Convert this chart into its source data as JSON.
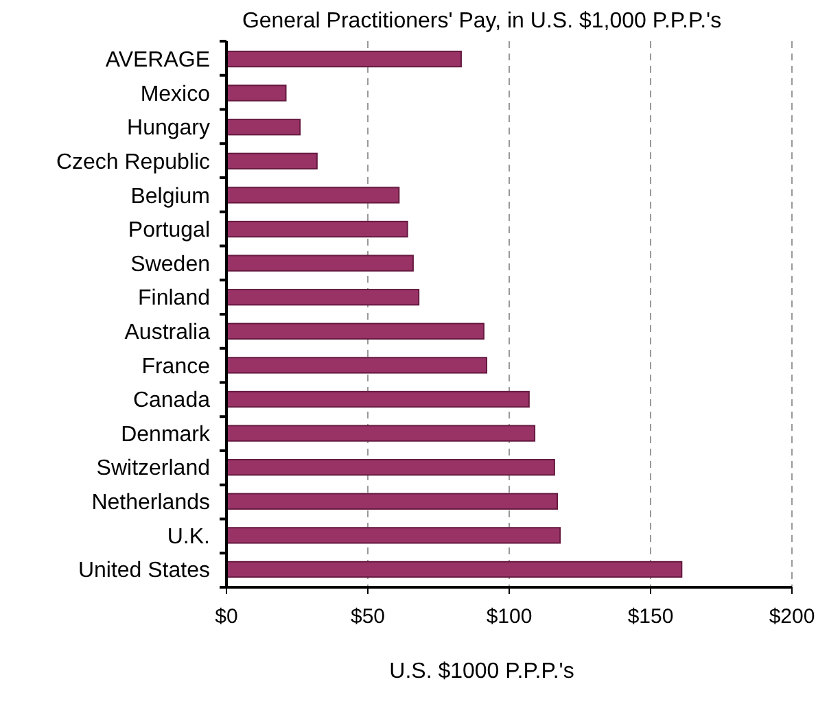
{
  "chart_data": {
    "type": "bar",
    "orientation": "horizontal",
    "title": "General Practitioners' Pay, in U.S. $1,000 P.P.P.'s",
    "xlabel": "U.S. $1000 P.P.P.'s",
    "categories": [
      "AVERAGE",
      "Mexico",
      "Hungary",
      "Czech Republic",
      "Belgium",
      "Portugal",
      "Sweden",
      "Finland",
      "Australia",
      "France",
      "Canada",
      "Denmark",
      "Switzerland",
      "Netherlands",
      "U.K.",
      "United States"
    ],
    "values": [
      83,
      21,
      26,
      32,
      61,
      64,
      66,
      68,
      91,
      92,
      107,
      109,
      116,
      117,
      118,
      161
    ],
    "color": "#993366",
    "xlim": [
      0,
      200
    ],
    "xticks": [
      {
        "value": 0,
        "label": "$0"
      },
      {
        "value": 50,
        "label": "$50"
      },
      {
        "value": 100,
        "label": "$100"
      },
      {
        "value": 150,
        "label": "$150"
      },
      {
        "value": 200,
        "label": "$200"
      }
    ],
    "grid": "x"
  }
}
